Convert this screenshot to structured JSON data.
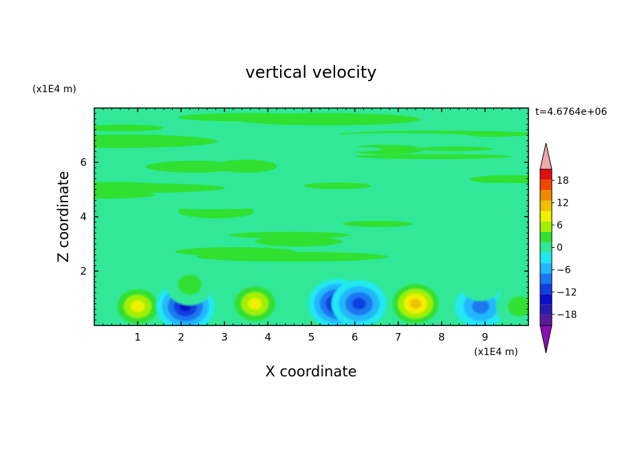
{
  "chart_data": {
    "type": "heatmap",
    "title": "vertical velocity",
    "xlabel": "X coordinate",
    "ylabel": "Z coordinate",
    "x_units": "(x1E4 m)",
    "y_units": "(x1E4 m)",
    "time_label": "t=4.6764e+06",
    "xlim": [
      0,
      10
    ],
    "ylim": [
      0,
      8
    ],
    "x_ticks": [
      1,
      2,
      3,
      4,
      5,
      6,
      7,
      8,
      9
    ],
    "y_ticks": [
      2,
      4,
      6
    ],
    "colorbar": {
      "levels": [
        -21,
        -18,
        -15,
        -12,
        -9,
        -6,
        -3,
        0,
        3,
        6,
        9,
        12,
        15,
        18,
        21
      ],
      "tick_values": [
        18,
        12,
        6,
        0,
        -6,
        -12,
        -18
      ],
      "colors": [
        "#5a1a9a",
        "#2a1ab0",
        "#0a10c8",
        "#1040e0",
        "#1a78f0",
        "#20b8ff",
        "#20e8f0",
        "#30e898",
        "#30e030",
        "#a0f000",
        "#f0f000",
        "#f0c000",
        "#f08800",
        "#f04800",
        "#e01010"
      ],
      "under_color": "#8a10b0",
      "over_color": "#f0a8a8"
    },
    "features": [
      {
        "x": 1.0,
        "z": 0.7,
        "value": 12
      },
      {
        "x": 2.1,
        "z": 0.7,
        "value": -15
      },
      {
        "x": 2.2,
        "z": 1.5,
        "value": 6
      },
      {
        "x": 3.7,
        "z": 0.8,
        "value": 12
      },
      {
        "x": 5.6,
        "z": 0.8,
        "value": -15
      },
      {
        "x": 6.1,
        "z": 0.8,
        "value": -12
      },
      {
        "x": 7.4,
        "z": 0.8,
        "value": 15
      },
      {
        "x": 8.9,
        "z": 0.7,
        "value": -9
      },
      {
        "x": 8.9,
        "z": 1.6,
        "value": 3
      },
      {
        "x": 9.8,
        "z": 0.7,
        "value": 6
      }
    ]
  }
}
